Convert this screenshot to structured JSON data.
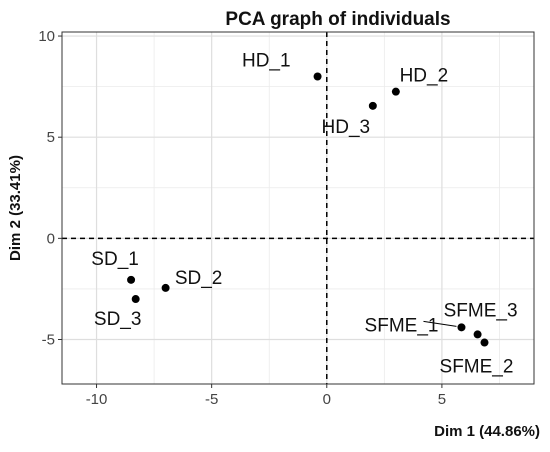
{
  "chart_data": {
    "type": "scatter",
    "title": "PCA graph of individuals",
    "xlabel": "Dim 1 (44.86%)",
    "ylabel": "Dim 2 (33.41%)",
    "xlim": [
      -11.5,
      9.0
    ],
    "ylim": [
      -7.2,
      10.2
    ],
    "xticks": [
      -10,
      -5,
      0,
      5
    ],
    "yticks": [
      -5,
      0,
      5,
      10
    ],
    "reference_lines": {
      "x": 0,
      "y": 0,
      "style": "dashed"
    },
    "grid": true,
    "points": [
      {
        "label": "HD_1",
        "x": -0.4,
        "y": 8.0
      },
      {
        "label": "HD_2",
        "x": 3.0,
        "y": 7.25
      },
      {
        "label": "HD_3",
        "x": 2.0,
        "y": 6.55
      },
      {
        "label": "SD_1",
        "x": -8.5,
        "y": -2.05
      },
      {
        "label": "SD_2",
        "x": -7.0,
        "y": -2.45
      },
      {
        "label": "SD_3",
        "x": -8.3,
        "y": -3.0
      },
      {
        "label": "SFME_1",
        "x": 5.85,
        "y": -4.4
      },
      {
        "label": "SFME_2",
        "x": 6.85,
        "y": -5.15
      },
      {
        "label": "SFME_3",
        "x": 6.55,
        "y": -4.75
      }
    ]
  },
  "colors": {
    "points": "#000000",
    "grid": "#ebebeb",
    "panel_border": "#333333",
    "reference_lines": "#000000"
  }
}
